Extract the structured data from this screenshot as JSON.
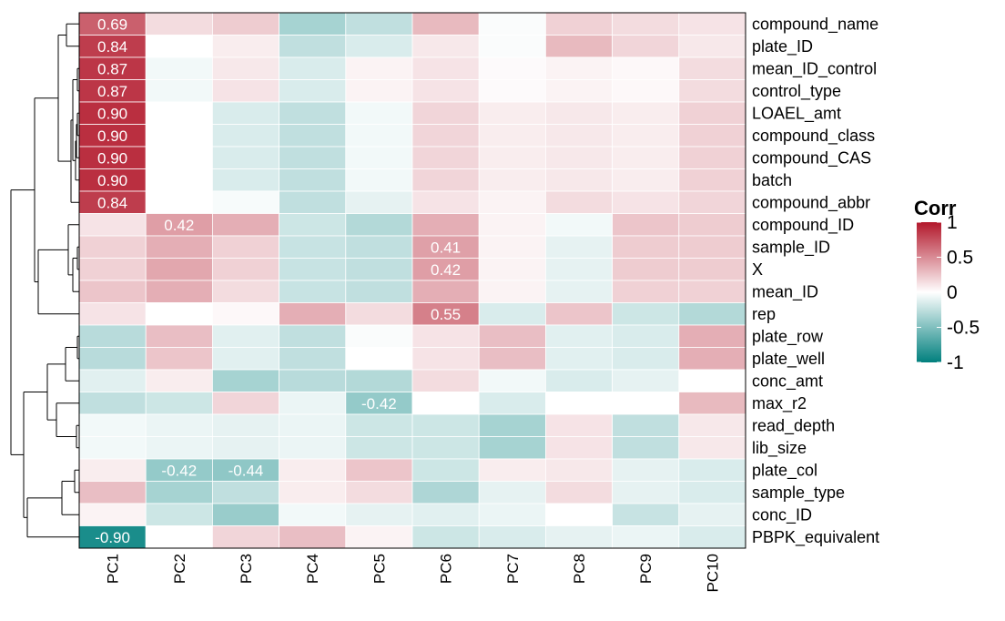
{
  "chart_data": {
    "type": "heatmap",
    "x": [
      "PC1",
      "PC2",
      "PC3",
      "PC4",
      "PC5",
      "PC6",
      "PC7",
      "PC8",
      "PC9",
      "PC10"
    ],
    "y": [
      "compound_name",
      "plate_ID",
      "mean_ID_control",
      "control_type",
      "LOAEL_amt",
      "compound_class",
      "compound_CAS",
      "batch",
      "compound_abbr",
      "compound_ID",
      "sample_ID",
      "X",
      "mean_ID",
      "rep",
      "plate_row",
      "plate_well",
      "conc_amt",
      "max_r2",
      "read_depth",
      "lib_size",
      "plate_col",
      "sample_type",
      "conc_ID",
      "PBPK_equivalent"
    ],
    "values": [
      [
        0.69,
        0.15,
        0.22,
        -0.35,
        -0.25,
        0.3,
        -0.02,
        0.2,
        0.15,
        0.12
      ],
      [
        0.84,
        0.0,
        0.08,
        -0.25,
        -0.15,
        0.1,
        -0.02,
        0.3,
        0.18,
        0.1
      ],
      [
        0.87,
        -0.05,
        0.1,
        -0.15,
        0.05,
        0.12,
        0.02,
        0.05,
        0.03,
        0.15
      ],
      [
        0.87,
        -0.05,
        0.12,
        -0.15,
        0.05,
        0.12,
        0.02,
        0.05,
        0.03,
        0.15
      ],
      [
        0.9,
        0.0,
        -0.15,
        -0.25,
        -0.05,
        0.18,
        0.08,
        0.1,
        0.08,
        0.2
      ],
      [
        0.9,
        0.0,
        -0.15,
        -0.25,
        -0.05,
        0.18,
        0.08,
        0.1,
        0.08,
        0.2
      ],
      [
        0.9,
        0.0,
        -0.15,
        -0.25,
        -0.05,
        0.18,
        0.08,
        0.1,
        0.08,
        0.2
      ],
      [
        0.9,
        0.0,
        -0.15,
        -0.25,
        -0.05,
        0.18,
        0.08,
        0.1,
        0.08,
        0.2
      ],
      [
        0.84,
        0.0,
        -0.03,
        -0.25,
        -0.1,
        0.12,
        0.05,
        0.15,
        0.12,
        0.18
      ],
      [
        0.12,
        0.42,
        0.35,
        -0.2,
        -0.3,
        0.35,
        0.05,
        -0.05,
        0.25,
        0.22
      ],
      [
        0.2,
        0.35,
        0.2,
        -0.22,
        -0.25,
        0.41,
        0.05,
        -0.1,
        0.22,
        0.22
      ],
      [
        0.2,
        0.38,
        0.2,
        -0.22,
        -0.25,
        0.42,
        0.05,
        -0.1,
        0.22,
        0.22
      ],
      [
        0.25,
        0.35,
        0.15,
        -0.22,
        -0.25,
        0.35,
        0.05,
        -0.1,
        0.2,
        0.2
      ],
      [
        0.12,
        0.0,
        0.03,
        0.35,
        0.15,
        0.55,
        -0.15,
        0.25,
        -0.2,
        -0.3
      ],
      [
        -0.28,
        0.28,
        -0.12,
        -0.25,
        -0.02,
        0.12,
        0.28,
        -0.12,
        -0.15,
        0.35
      ],
      [
        -0.28,
        0.25,
        -0.12,
        -0.25,
        0.0,
        0.12,
        0.28,
        -0.12,
        -0.15,
        0.35
      ],
      [
        -0.12,
        0.08,
        -0.35,
        -0.28,
        -0.3,
        0.15,
        -0.05,
        -0.15,
        -0.1,
        0.0
      ],
      [
        -0.25,
        -0.2,
        0.18,
        -0.08,
        -0.42,
        0.0,
        -0.15,
        0.0,
        0.0,
        0.3
      ],
      [
        -0.05,
        -0.08,
        -0.1,
        -0.08,
        -0.2,
        -0.2,
        -0.35,
        0.12,
        -0.25,
        0.1
      ],
      [
        -0.05,
        -0.08,
        -0.1,
        -0.08,
        -0.2,
        -0.2,
        -0.35,
        0.12,
        -0.25,
        0.1
      ],
      [
        0.08,
        -0.42,
        -0.44,
        0.08,
        0.25,
        -0.2,
        0.08,
        0.1,
        -0.1,
        -0.15
      ],
      [
        0.28,
        -0.35,
        -0.25,
        0.08,
        0.15,
        -0.32,
        -0.1,
        0.15,
        -0.1,
        -0.15
      ],
      [
        0.05,
        -0.2,
        -0.4,
        -0.05,
        -0.1,
        -0.12,
        -0.08,
        0.0,
        -0.22,
        -0.1
      ],
      [
        -0.9,
        0.0,
        0.18,
        0.28,
        0.05,
        -0.2,
        -0.15,
        -0.1,
        -0.08,
        -0.15
      ]
    ],
    "labelled_cells": [
      {
        "row": 0,
        "col": 0,
        "text": "0.69"
      },
      {
        "row": 1,
        "col": 0,
        "text": "0.84"
      },
      {
        "row": 2,
        "col": 0,
        "text": "0.87"
      },
      {
        "row": 3,
        "col": 0,
        "text": "0.87"
      },
      {
        "row": 4,
        "col": 0,
        "text": "0.90"
      },
      {
        "row": 5,
        "col": 0,
        "text": "0.90"
      },
      {
        "row": 6,
        "col": 0,
        "text": "0.90"
      },
      {
        "row": 7,
        "col": 0,
        "text": "0.90"
      },
      {
        "row": 8,
        "col": 0,
        "text": "0.84"
      },
      {
        "row": 9,
        "col": 1,
        "text": "0.42"
      },
      {
        "row": 10,
        "col": 5,
        "text": "0.41"
      },
      {
        "row": 11,
        "col": 5,
        "text": "0.42"
      },
      {
        "row": 13,
        "col": 5,
        "text": "0.55"
      },
      {
        "row": 17,
        "col": 4,
        "text": "-0.42"
      },
      {
        "row": 20,
        "col": 1,
        "text": "-0.42"
      },
      {
        "row": 20,
        "col": 2,
        "text": "-0.44"
      },
      {
        "row": 23,
        "col": 0,
        "text": "-0.90"
      }
    ],
    "legend": {
      "title": "Corr",
      "ticks": [
        "1",
        "0.5",
        "0",
        "-0.5",
        "-1"
      ],
      "range": [
        -1,
        1
      ],
      "colors": {
        "high": "#b2182b",
        "mid": "#ffffff",
        "low": "#01807e"
      },
      "placement": "right"
    },
    "row_dendrogram": true
  }
}
